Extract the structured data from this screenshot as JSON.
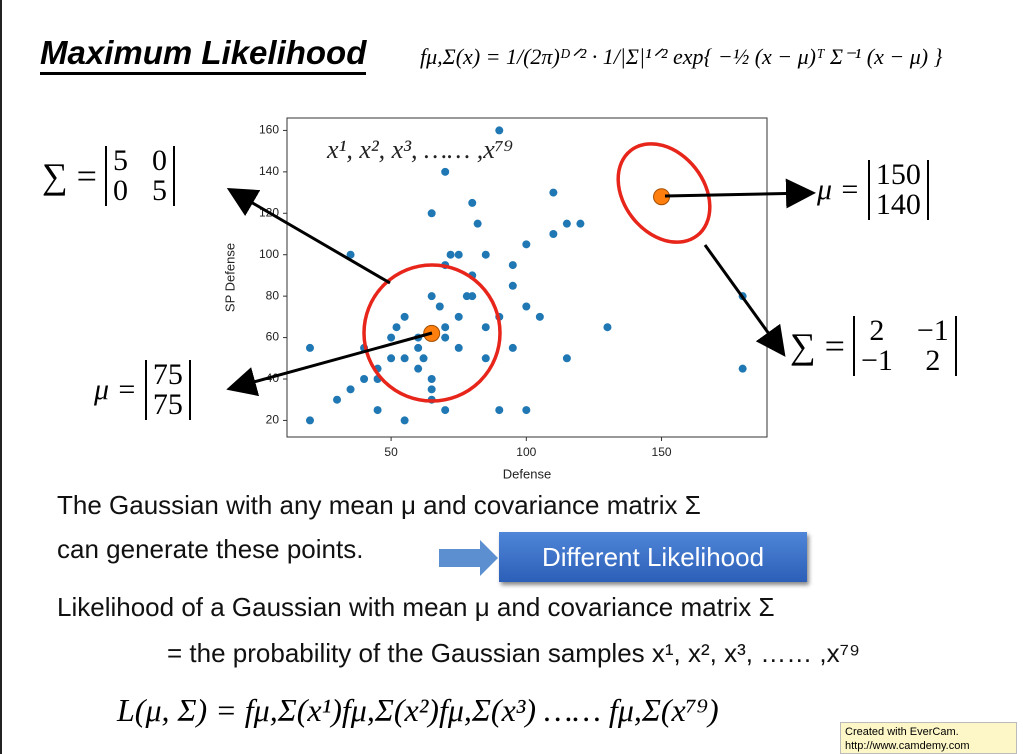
{
  "title": "Maximum Likelihood",
  "formula": "fμ,Σ(x) = 1/(2π)ᴰᐟ² · 1/|Σ|¹ᐟ² exp{ −½ (x − μ)ᵀ Σ⁻¹ (x − μ) }",
  "chart_data": {
    "type": "scatter",
    "x": [
      20,
      20,
      30,
      35,
      35,
      40,
      40,
      45,
      45,
      45,
      50,
      50,
      52,
      55,
      55,
      55,
      60,
      60,
      60,
      62,
      65,
      65,
      65,
      65,
      65,
      68,
      70,
      70,
      70,
      70,
      70,
      72,
      75,
      75,
      75,
      78,
      80,
      80,
      80,
      82,
      85,
      85,
      85,
      90,
      90,
      90,
      95,
      95,
      95,
      100,
      100,
      100,
      105,
      110,
      110,
      115,
      115,
      120,
      130,
      180,
      180
    ],
    "y": [
      20,
      55,
      30,
      35,
      100,
      40,
      55,
      25,
      40,
      45,
      50,
      60,
      65,
      20,
      50,
      70,
      45,
      55,
      60,
      50,
      30,
      35,
      40,
      80,
      120,
      75,
      25,
      60,
      65,
      95,
      140,
      100,
      55,
      70,
      100,
      80,
      80,
      90,
      125,
      115,
      50,
      65,
      100,
      25,
      70,
      160,
      55,
      85,
      95,
      25,
      75,
      105,
      70,
      130,
      110,
      50,
      115,
      115,
      65,
      80,
      45
    ],
    "color": "#1f77b4",
    "highlight": {
      "x": [
        65,
        150
      ],
      "y": [
        62,
        128
      ],
      "color": "#ff7f0e"
    },
    "xlabel": "Defense",
    "ylabel": "SP Defense",
    "xlim": [
      11.5,
      189
    ],
    "ylim": [
      12,
      166
    ],
    "xticks": [
      50,
      100,
      150
    ],
    "yticks": [
      20,
      40,
      60,
      80,
      100,
      120,
      140,
      160
    ],
    "annotation": "x¹, x², x³, …… ,x⁷⁹"
  },
  "annotations": {
    "sigma_left": {
      "label": "∑ =",
      "rows": [
        [
          "5",
          "0"
        ],
        [
          "0",
          "5"
        ]
      ]
    },
    "mu_left": {
      "label": "μ =",
      "rows": [
        [
          "75"
        ],
        [
          "75"
        ]
      ]
    },
    "mu_right": {
      "label": "μ =",
      "rows": [
        [
          "150"
        ],
        [
          "140"
        ]
      ]
    },
    "sigma_right": {
      "label": "∑ =",
      "rows": [
        [
          "2",
          "−1"
        ],
        [
          "−1",
          "2"
        ]
      ]
    }
  },
  "text": {
    "line1": "The Gaussian with any mean μ and covariance matrix Σ",
    "line2": "can generate these points.",
    "button": "Different Likelihood",
    "line3": "Likelihood of a Gaussian with mean μ and covariance matrix Σ",
    "line4": "= the probability of the Gaussian samples x¹, x², x³, …… ,x⁷⁹",
    "likelihood": "L(μ, Σ)  = fμ,Σ(x¹)fμ,Σ(x²)fμ,Σ(x³) …… fμ,Σ(x⁷⁹)",
    "watermark1": "Created with EverCam.",
    "watermark2": "http://www.camdemy.com"
  }
}
